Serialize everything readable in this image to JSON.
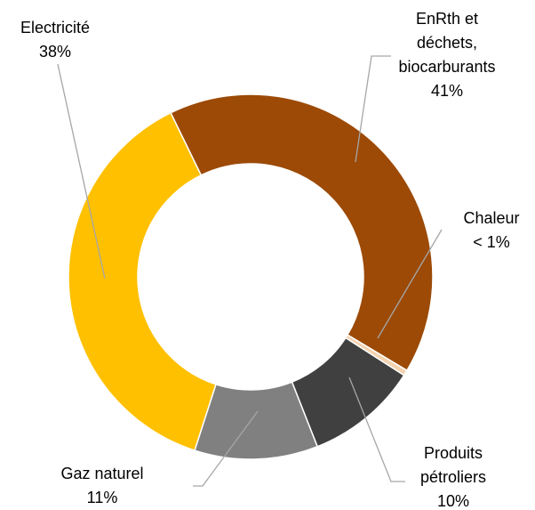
{
  "chart_data": {
    "type": "donut",
    "categories": [
      "EnRth et déchets, biocarburants",
      "Chaleur",
      "Produits pétroliers",
      "Gaz naturel",
      "Electricité"
    ],
    "values": [
      41,
      0.5,
      10,
      11,
      38
    ],
    "value_labels": [
      "41%",
      "< 1%",
      "10%",
      "11%",
      "38%"
    ],
    "colors": [
      "#9c4a06",
      "#f4d3b0",
      "#404040",
      "#808080",
      "#ffc000"
    ]
  }
}
